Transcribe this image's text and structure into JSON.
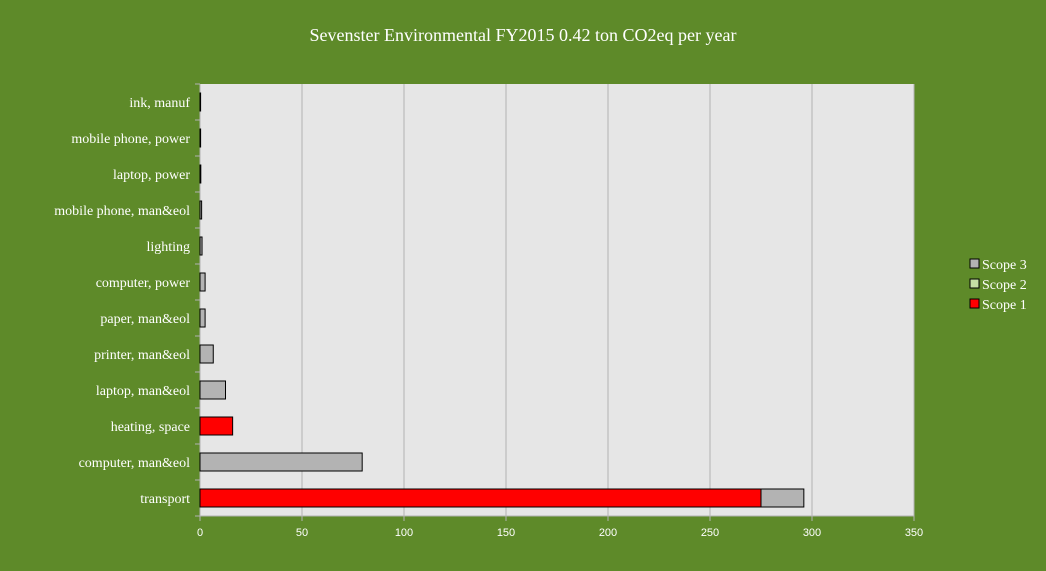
{
  "chart_data": {
    "type": "bar",
    "orientation": "horizontal",
    "stacked": true,
    "title": "Sevenster Environmental FY2015 0.42 ton CO2eq per year",
    "categories": [
      "ink, manuf",
      "mobile phone, power",
      "laptop, power",
      "mobile phone, man&eol",
      "lighting",
      "computer, power",
      "paper, man&eol",
      "printer, man&eol",
      "laptop, man&eol",
      "heating, space",
      "computer, man&eol",
      "transport"
    ],
    "series": [
      {
        "name": "Scope 1",
        "color": "#ff0000",
        "values": [
          0,
          0,
          0,
          0,
          0,
          0,
          0,
          0,
          0,
          16,
          0,
          275
        ]
      },
      {
        "name": "Scope 2",
        "color": "#c5e0a5",
        "values": [
          0,
          0,
          0,
          0,
          0,
          0,
          0,
          0,
          0,
          0,
          0,
          0
        ]
      },
      {
        "name": "Scope 3",
        "color": "#b3b3b3",
        "values": [
          0.2,
          0.3,
          0.4,
          0.8,
          1,
          2.5,
          2.5,
          6.5,
          12.5,
          0,
          79.5,
          21
        ]
      }
    ],
    "legend_order": [
      "Scope 3",
      "Scope 2",
      "Scope 1"
    ],
    "legend_position": "right",
    "xlim": [
      0,
      350
    ],
    "xticks": [
      0,
      50,
      100,
      150,
      200,
      250,
      300,
      350
    ],
    "grid": true,
    "colors": {
      "background": "#5e8a29",
      "plot_area": "#e6e6e6",
      "gridline": "#b3b3b3",
      "text": "#ffffff"
    }
  }
}
